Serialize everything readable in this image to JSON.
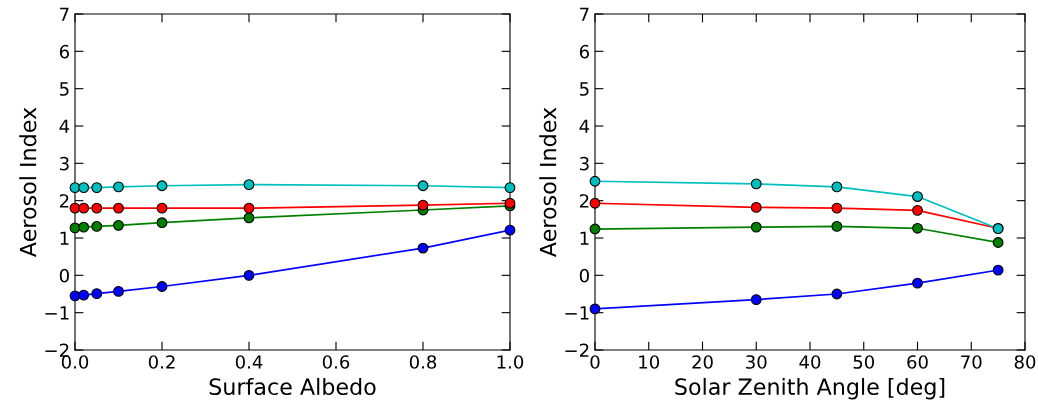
{
  "chart_data": [
    {
      "type": "line",
      "xlabel": "Surface Albedo",
      "ylabel": "Aerosol Index",
      "x": [
        0,
        0.02,
        0.05,
        0.1,
        0.2,
        0.4,
        0.8,
        1.0
      ],
      "xlim": [
        0,
        1.0
      ],
      "xticks": [
        {
          "value": 0,
          "label": "0.0"
        },
        0.2,
        0.4,
        0.6,
        0.8,
        {
          "value": 1,
          "label": "1.0"
        }
      ],
      "ylim": [
        -2,
        7
      ],
      "yticks": [
        -2,
        -1,
        0,
        1,
        2,
        3,
        4,
        5,
        6,
        7
      ],
      "marker": "circle",
      "series": [
        {
          "color": "#00bfbf",
          "values": [
            2.35,
            2.35,
            2.35,
            2.37,
            2.4,
            2.43,
            2.4,
            2.35
          ]
        },
        {
          "color": "#ff0000",
          "values": [
            1.8,
            1.8,
            1.8,
            1.8,
            1.8,
            1.8,
            1.88,
            1.93
          ]
        },
        {
          "color": "#008000",
          "values": [
            1.27,
            1.29,
            1.31,
            1.34,
            1.41,
            1.54,
            1.75,
            1.86
          ]
        },
        {
          "color": "#0000ff",
          "values": [
            -0.55,
            -0.53,
            -0.49,
            -0.43,
            -0.3,
            0.0,
            0.73,
            1.21
          ]
        }
      ]
    },
    {
      "type": "line",
      "xlabel": "Solar Zenith Angle [deg]",
      "ylabel": "Aerosol Index",
      "x": [
        0,
        30,
        45,
        60,
        75
      ],
      "xlim": [
        0,
        80
      ],
      "xticks": [
        0,
        10,
        20,
        30,
        40,
        50,
        60,
        70,
        80
      ],
      "ylim": [
        -2,
        7
      ],
      "yticks": [
        -2,
        -1,
        0,
        1,
        2,
        3,
        4,
        5,
        6,
        7
      ],
      "marker": "circle",
      "series": [
        {
          "color": "#00bfbf",
          "values": [
            2.52,
            2.45,
            2.37,
            2.11,
            1.25
          ]
        },
        {
          "color": "#ff0000",
          "values": [
            1.93,
            1.82,
            1.8,
            1.74,
            1.26
          ]
        },
        {
          "color": "#008000",
          "values": [
            1.24,
            1.29,
            1.31,
            1.26,
            0.88
          ]
        },
        {
          "color": "#0000ff",
          "values": [
            -0.9,
            -0.65,
            -0.5,
            -0.21,
            0.14
          ]
        }
      ]
    }
  ]
}
